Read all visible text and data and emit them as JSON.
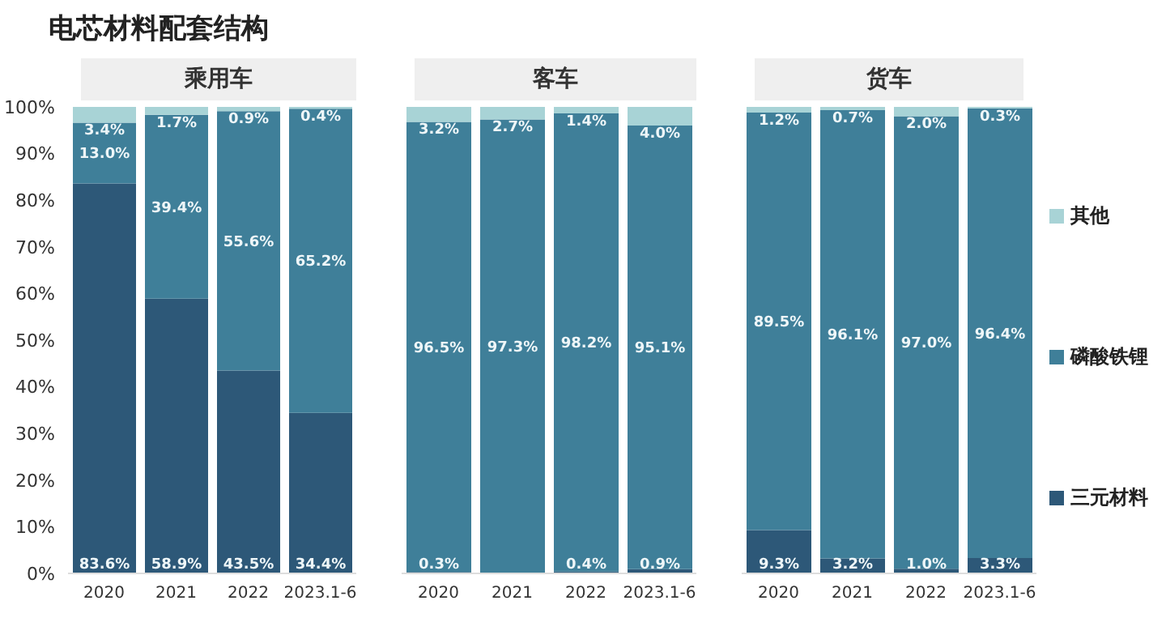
{
  "chart_data": [
    {
      "type": "bar",
      "title": "电芯材料配套结构",
      "subtitle": "乘用车",
      "categories": [
        "2020",
        "2021",
        "2022",
        "2023.1-6"
      ],
      "stacked": true,
      "ylim": [
        0,
        100
      ],
      "yticks": [
        {
          "value": 0,
          "label": "0%"
        },
        {
          "value": 10,
          "label": "10%"
        },
        {
          "value": 20,
          "label": "20%"
        },
        {
          "value": 30,
          "label": "30%"
        },
        {
          "value": 40,
          "label": "40%"
        },
        {
          "value": 50,
          "label": "50%"
        },
        {
          "value": 60,
          "label": "60%"
        },
        {
          "value": 70,
          "label": "70%"
        },
        {
          "value": 80,
          "label": "80%"
        },
        {
          "value": 90,
          "label": "90%"
        },
        {
          "value": 100,
          "label": "100%"
        }
      ],
      "grid": false,
      "legend": false,
      "series": [
        {
          "color": "#2d5878",
          "values": [
            83.6,
            58.9,
            43.5,
            34.4
          ],
          "value_labels": [
            "83.6%",
            "58.9%",
            "43.5%",
            "34.4%"
          ]
        },
        {
          "color": "#3f7f99",
          "values": [
            13.0,
            39.4,
            55.6,
            65.2
          ],
          "value_labels": [
            "13.0%",
            "39.4%",
            "55.6%",
            "65.2%"
          ]
        },
        {
          "color": "#a8d3d6",
          "values": [
            3.4,
            1.7,
            0.9,
            0.4
          ],
          "value_labels": [
            "3.4%",
            "1.7%",
            "0.9%",
            "0.4%"
          ]
        }
      ]
    },
    {
      "type": "bar",
      "subtitle": "客车",
      "categories": [
        "2020",
        "2021",
        "2022",
        "2023.1-6"
      ],
      "stacked": true,
      "ylim": [
        0,
        100
      ],
      "tick_labels": "x",
      "grid": false,
      "legend": false,
      "series": [
        {
          "color": "#2d5878",
          "values": [
            0.3,
            0,
            0.4,
            0.9
          ],
          "value_labels": [
            "0.3%",
            null,
            "0.4%",
            "0.9%"
          ]
        },
        {
          "color": "#3f7f99",
          "values": [
            96.5,
            97.3,
            98.2,
            95.1
          ],
          "value_labels": [
            "96.5%",
            "97.3%",
            "98.2%",
            "95.1%"
          ]
        },
        {
          "color": "#a8d3d6",
          "values": [
            3.2,
            2.7,
            1.4,
            4.0
          ],
          "value_labels": [
            "3.2%",
            "2.7%",
            "1.4%",
            "4.0%"
          ]
        }
      ]
    },
    {
      "type": "bar",
      "subtitle": "货车",
      "categories": [
        "2020",
        "2021",
        "2022",
        "2023.1-6"
      ],
      "stacked": true,
      "ylim": [
        0,
        100
      ],
      "tick_labels": "x",
      "grid": false,
      "legend": "right",
      "series": [
        {
          "name": "三元材料",
          "color": "#2d5878",
          "values": [
            9.3,
            3.2,
            1.0,
            3.3
          ],
          "value_labels": [
            "9.3%",
            "3.2%",
            "1.0%",
            "3.3%"
          ]
        },
        {
          "name": "磷酸铁锂",
          "color": "#3f7f99",
          "values": [
            89.5,
            96.1,
            97.0,
            96.4
          ],
          "value_labels": [
            "89.5%",
            "96.1%",
            "97.0%",
            "96.4%"
          ]
        },
        {
          "name": "其他",
          "color": "#a8d3d6",
          "values": [
            1.2,
            0.7,
            2.0,
            0.3
          ],
          "value_labels": [
            "1.2%",
            "0.7%",
            "2.0%",
            "0.3%"
          ]
        }
      ]
    }
  ]
}
